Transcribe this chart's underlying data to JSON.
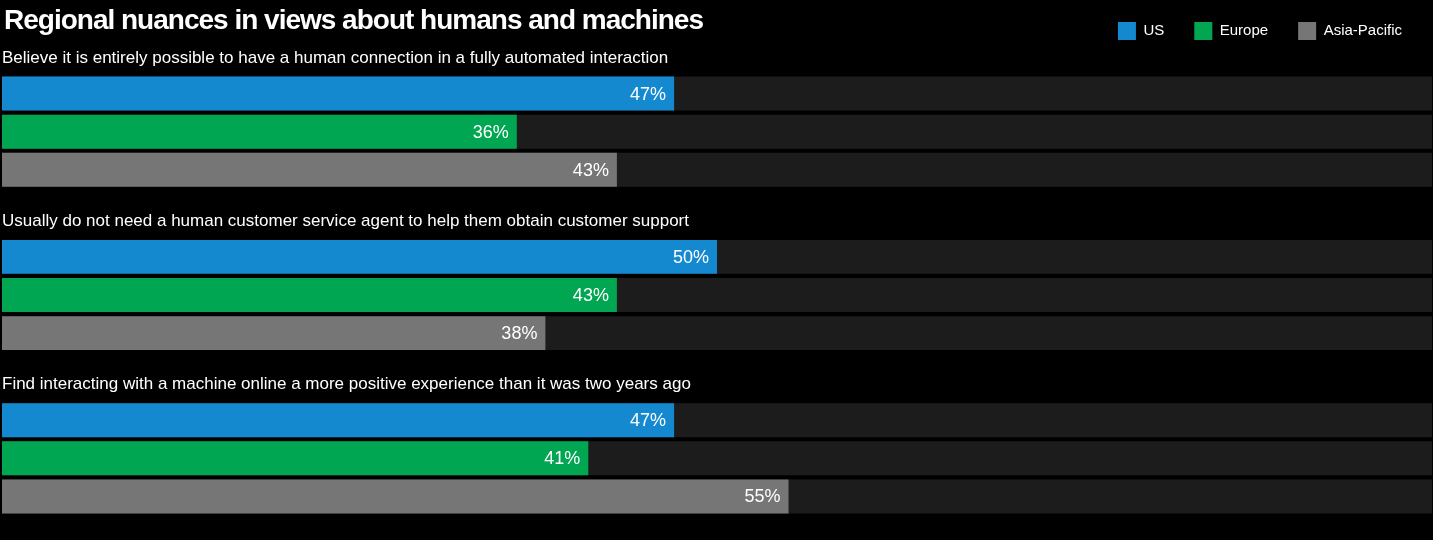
{
  "chart_data": {
    "type": "bar",
    "orientation": "horizontal",
    "title": "Regional nuances in views about humans and machines",
    "categories": [
      "Believe it is entirely possible to have a human connection in a fully automated interaction",
      "Usually do not need a human customer service agent to help them obtain customer support",
      "Find interacting with a machine online a more positive experience than it was two years ago"
    ],
    "series": [
      {
        "name": "US",
        "color": "#1589d0",
        "values": [
          47,
          50,
          47
        ],
        "value_labels": [
          "47%",
          "50%",
          "47%"
        ]
      },
      {
        "name": "Europe",
        "color": "#00a651",
        "values": [
          36,
          43,
          41
        ],
        "value_labels": [
          "36%",
          "43%",
          "41%"
        ]
      },
      {
        "name": "Asia-Pacific",
        "color": "#767676",
        "values": [
          43,
          38,
          55
        ],
        "value_labels": [
          "43%",
          "38%",
          "55%"
        ]
      }
    ],
    "xlim": [
      0,
      100
    ],
    "legend": "top right",
    "tick_labels": "y"
  }
}
